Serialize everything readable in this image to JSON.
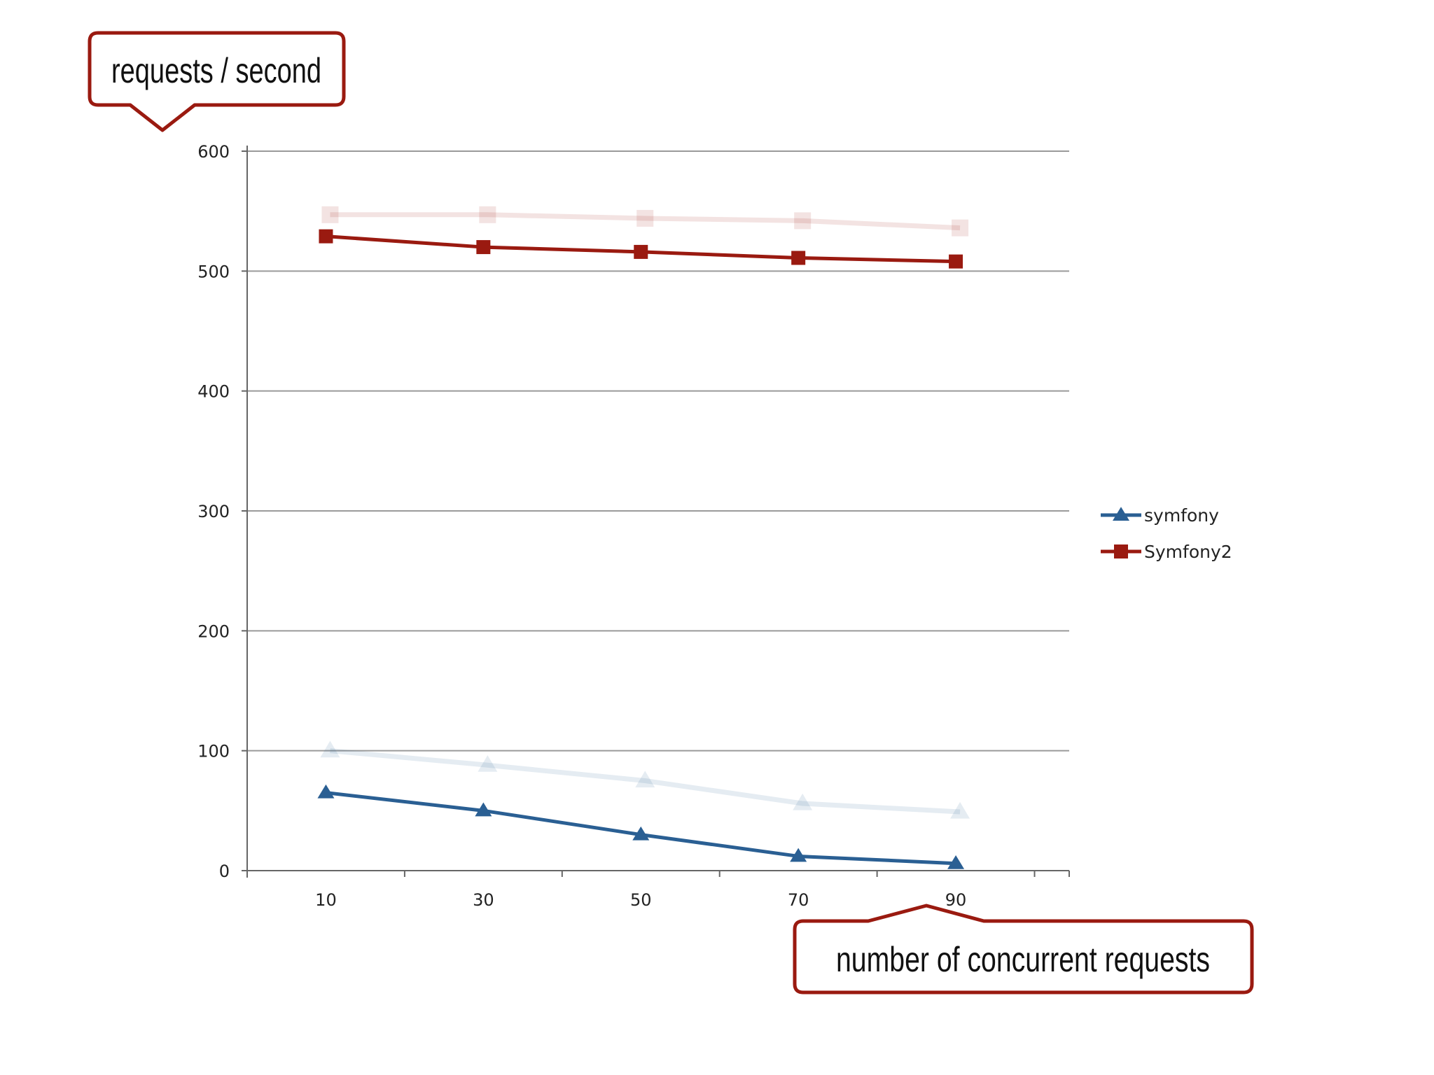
{
  "chart_data": {
    "type": "line",
    "title": "",
    "ylabel": "requests / second",
    "xlabel": "number of concurrent requests",
    "categories": [
      "10",
      "30",
      "50",
      "70",
      "90"
    ],
    "ylim": [
      0,
      600
    ],
    "yticks": [
      "0",
      "100",
      "200",
      "300",
      "400",
      "500",
      "600"
    ],
    "grid": true,
    "legend_position": "right",
    "series": [
      {
        "name": "symfony",
        "color": "#2a5f93",
        "marker": "triangle",
        "values": [
          65,
          50,
          30,
          12,
          6
        ],
        "ghost_values": [
          100,
          88,
          75,
          56,
          49
        ]
      },
      {
        "name": "Symfony2",
        "color": "#9a1a10",
        "marker": "square",
        "values": [
          529,
          520,
          516,
          511,
          508
        ],
        "ghost_values": [
          547,
          547,
          544,
          542,
          536
        ]
      }
    ]
  },
  "colors": {
    "callout_border": "#9a1a10",
    "gridline": "#9a9a9a",
    "axis": "#666666"
  }
}
